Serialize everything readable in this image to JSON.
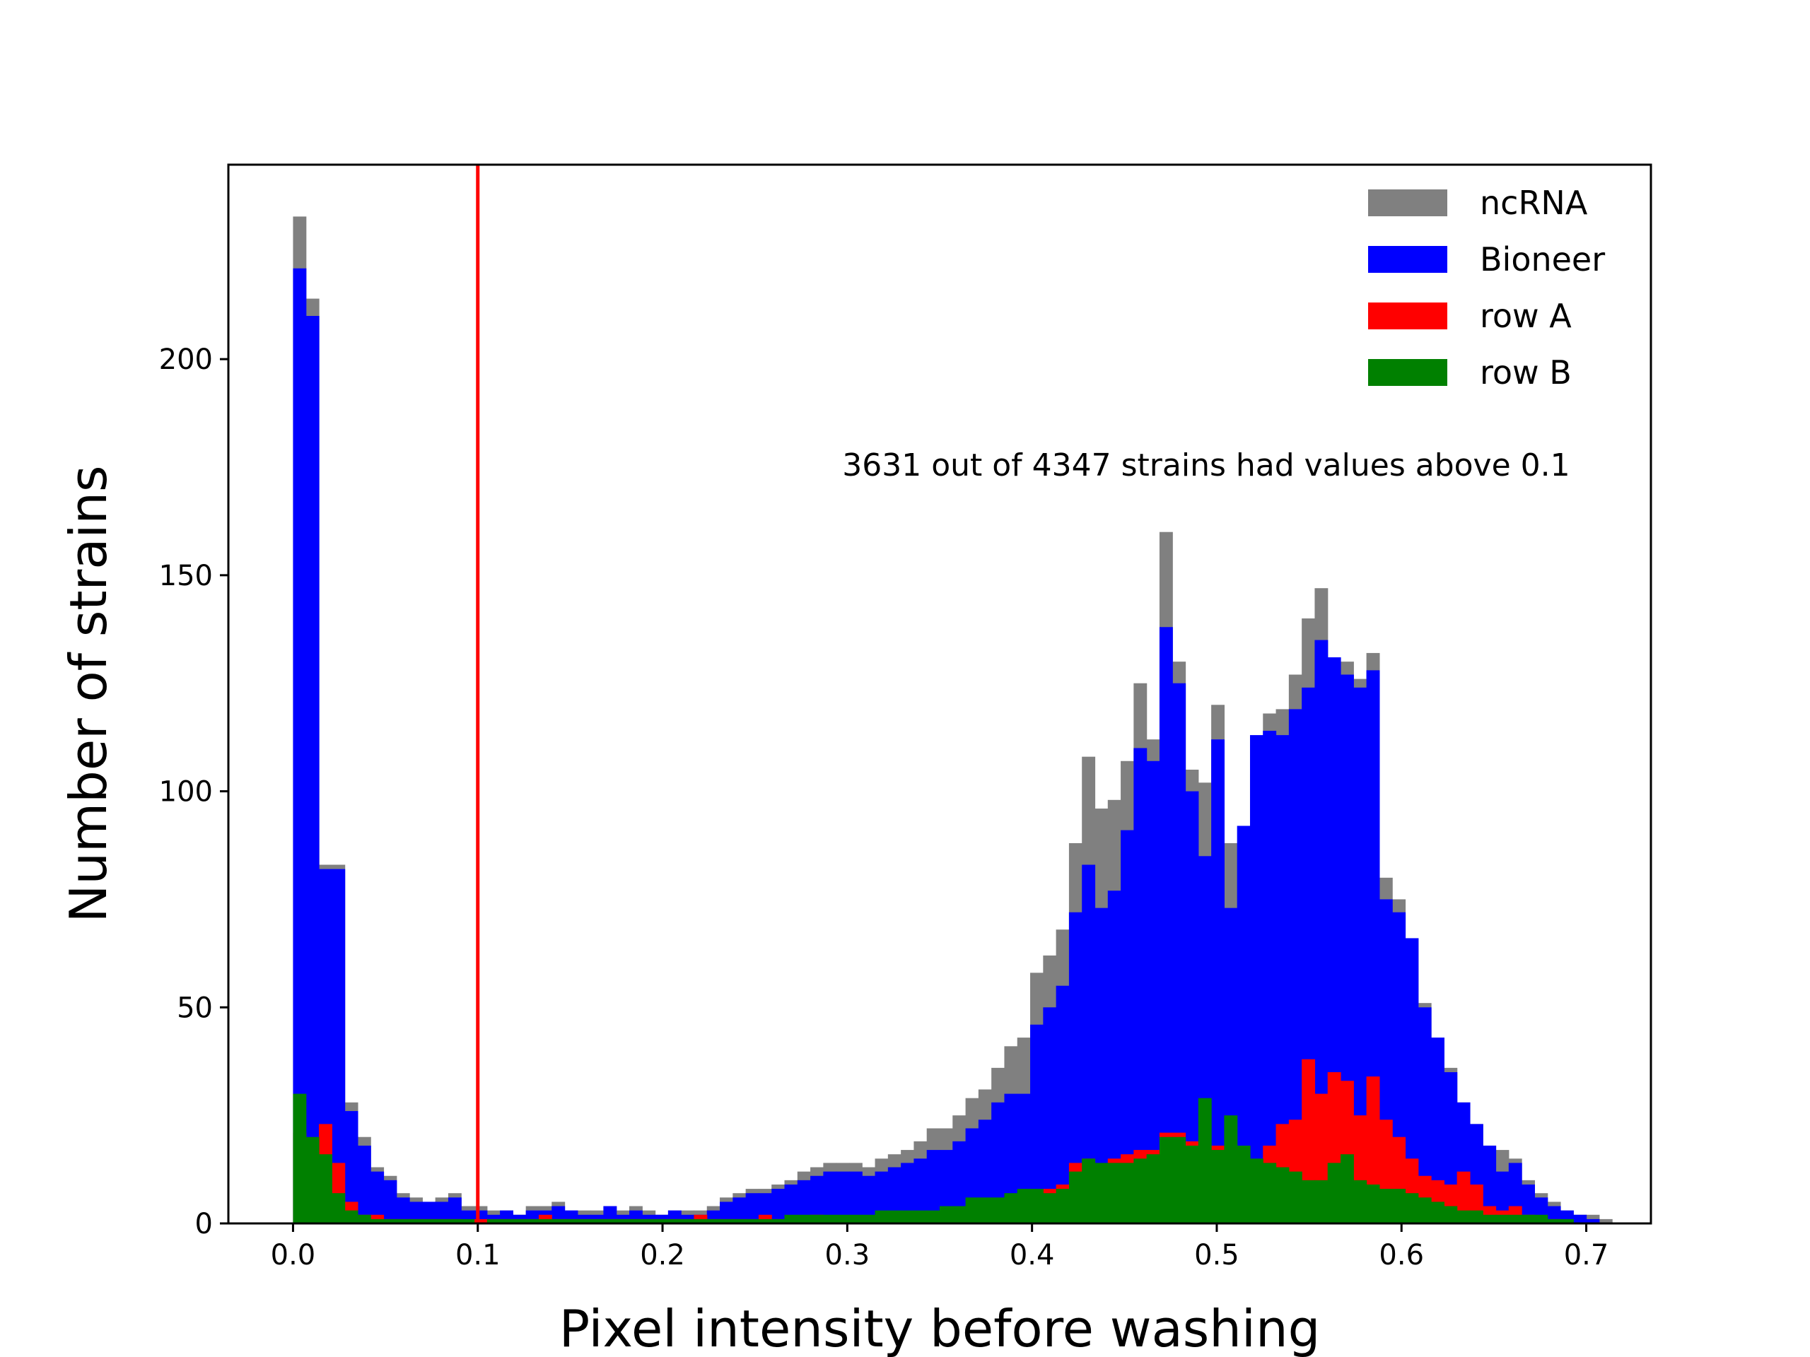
{
  "chart_data": {
    "type": "bar",
    "subtype": "stacked-overlapping-histogram",
    "title": "",
    "xlabel": "Pixel intensity before washing",
    "ylabel": "Number of strains",
    "xlim": [
      -0.035,
      0.735
    ],
    "ylim": [
      0,
      245
    ],
    "xticks": [
      0.0,
      0.1,
      0.2,
      0.3,
      0.4,
      0.5,
      0.6,
      0.7
    ],
    "xtick_labels": [
      "0.0",
      "0.1",
      "0.2",
      "0.3",
      "0.4",
      "0.5",
      "0.6",
      "0.7"
    ],
    "yticks": [
      0,
      50,
      100,
      150,
      200
    ],
    "ytick_labels": [
      "0",
      "50",
      "100",
      "150",
      "200"
    ],
    "grid": false,
    "legend_position": "top-right",
    "bin_start": 0.0,
    "bin_width": 0.007,
    "threshold": {
      "x": 0.1,
      "color": "#ff0000"
    },
    "annotation": {
      "text": "3631 out of 4347 strains had values above 0.1",
      "x": 0.37,
      "y": 173
    },
    "series": [
      {
        "name": "ncRNA",
        "color": "#808080",
        "values": [
          233,
          214,
          83,
          83,
          28,
          20,
          13,
          11,
          7,
          6,
          5,
          6,
          7,
          4,
          4,
          3,
          3,
          2,
          4,
          4,
          5,
          3,
          3,
          3,
          4,
          3,
          4,
          3,
          2,
          3,
          3,
          3,
          4,
          6,
          7,
          8,
          8,
          9,
          10,
          12,
          13,
          14,
          14,
          14,
          13,
          15,
          16,
          17,
          19,
          22,
          22,
          25,
          29,
          31,
          36,
          41,
          43,
          58,
          62,
          68,
          88,
          108,
          96,
          98,
          107,
          125,
          112,
          160,
          130,
          105,
          102,
          120,
          88,
          85,
          104,
          118,
          119,
          127,
          140,
          147,
          129,
          130,
          126,
          132,
          80,
          75,
          66,
          51,
          43,
          36,
          28,
          23,
          18,
          17,
          15,
          10,
          7,
          5,
          3,
          2,
          2,
          1
        ]
      },
      {
        "name": "Bioneer",
        "color": "#0000ff",
        "values": [
          221,
          210,
          82,
          82,
          26,
          18,
          12,
          10,
          6,
          5,
          5,
          5,
          6,
          3,
          3,
          2,
          3,
          2,
          3,
          3,
          4,
          3,
          2,
          2,
          4,
          2,
          3,
          2,
          2,
          3,
          2,
          2,
          3,
          5,
          6,
          7,
          7,
          8,
          9,
          10,
          11,
          12,
          12,
          12,
          11,
          12,
          13,
          14,
          15,
          17,
          17,
          19,
          22,
          24,
          28,
          30,
          30,
          46,
          50,
          55,
          72,
          83,
          73,
          77,
          91,
          110,
          107,
          138,
          125,
          100,
          85,
          112,
          73,
          92,
          113,
          114,
          113,
          119,
          124,
          135,
          131,
          127,
          124,
          128,
          75,
          72,
          66,
          50,
          43,
          35,
          28,
          23,
          18,
          12,
          14,
          9,
          6,
          4,
          3,
          2,
          1,
          0
        ]
      },
      {
        "name": "row A",
        "color": "#ff0000",
        "values": [
          21,
          19,
          23,
          14,
          5,
          2,
          2,
          1,
          1,
          1,
          1,
          1,
          1,
          0,
          1,
          1,
          1,
          1,
          1,
          2,
          1,
          1,
          1,
          1,
          1,
          1,
          1,
          1,
          1,
          1,
          1,
          2,
          1,
          1,
          1,
          1,
          2,
          1,
          1,
          1,
          2,
          1,
          1,
          1,
          1,
          1,
          2,
          2,
          2,
          1,
          2,
          3,
          3,
          3,
          3,
          3,
          3,
          6,
          8,
          9,
          14,
          15,
          12,
          15,
          16,
          17,
          17,
          21,
          21,
          19,
          17,
          18,
          15,
          13,
          12,
          18,
          23,
          24,
          38,
          30,
          35,
          33,
          25,
          34,
          24,
          20,
          15,
          11,
          10,
          9,
          12,
          9,
          4,
          3,
          4,
          2,
          1,
          1,
          0,
          0,
          0,
          0
        ]
      },
      {
        "name": "row B",
        "color": "#008000",
        "values": [
          30,
          20,
          16,
          7,
          3,
          2,
          1,
          1,
          1,
          1,
          1,
          1,
          1,
          1,
          0,
          1,
          1,
          1,
          1,
          1,
          1,
          1,
          1,
          1,
          1,
          1,
          1,
          1,
          1,
          1,
          1,
          1,
          1,
          1,
          1,
          1,
          1,
          1,
          2,
          2,
          2,
          2,
          2,
          2,
          2,
          3,
          3,
          3,
          3,
          3,
          4,
          4,
          6,
          6,
          6,
          7,
          8,
          8,
          7,
          8,
          12,
          15,
          14,
          14,
          14,
          15,
          16,
          20,
          20,
          18,
          29,
          17,
          25,
          18,
          15,
          14,
          13,
          12,
          10,
          10,
          14,
          16,
          10,
          9,
          8,
          8,
          7,
          6,
          5,
          4,
          3,
          3,
          2,
          2,
          2,
          2,
          2,
          1,
          1,
          0,
          0,
          0
        ]
      }
    ]
  }
}
